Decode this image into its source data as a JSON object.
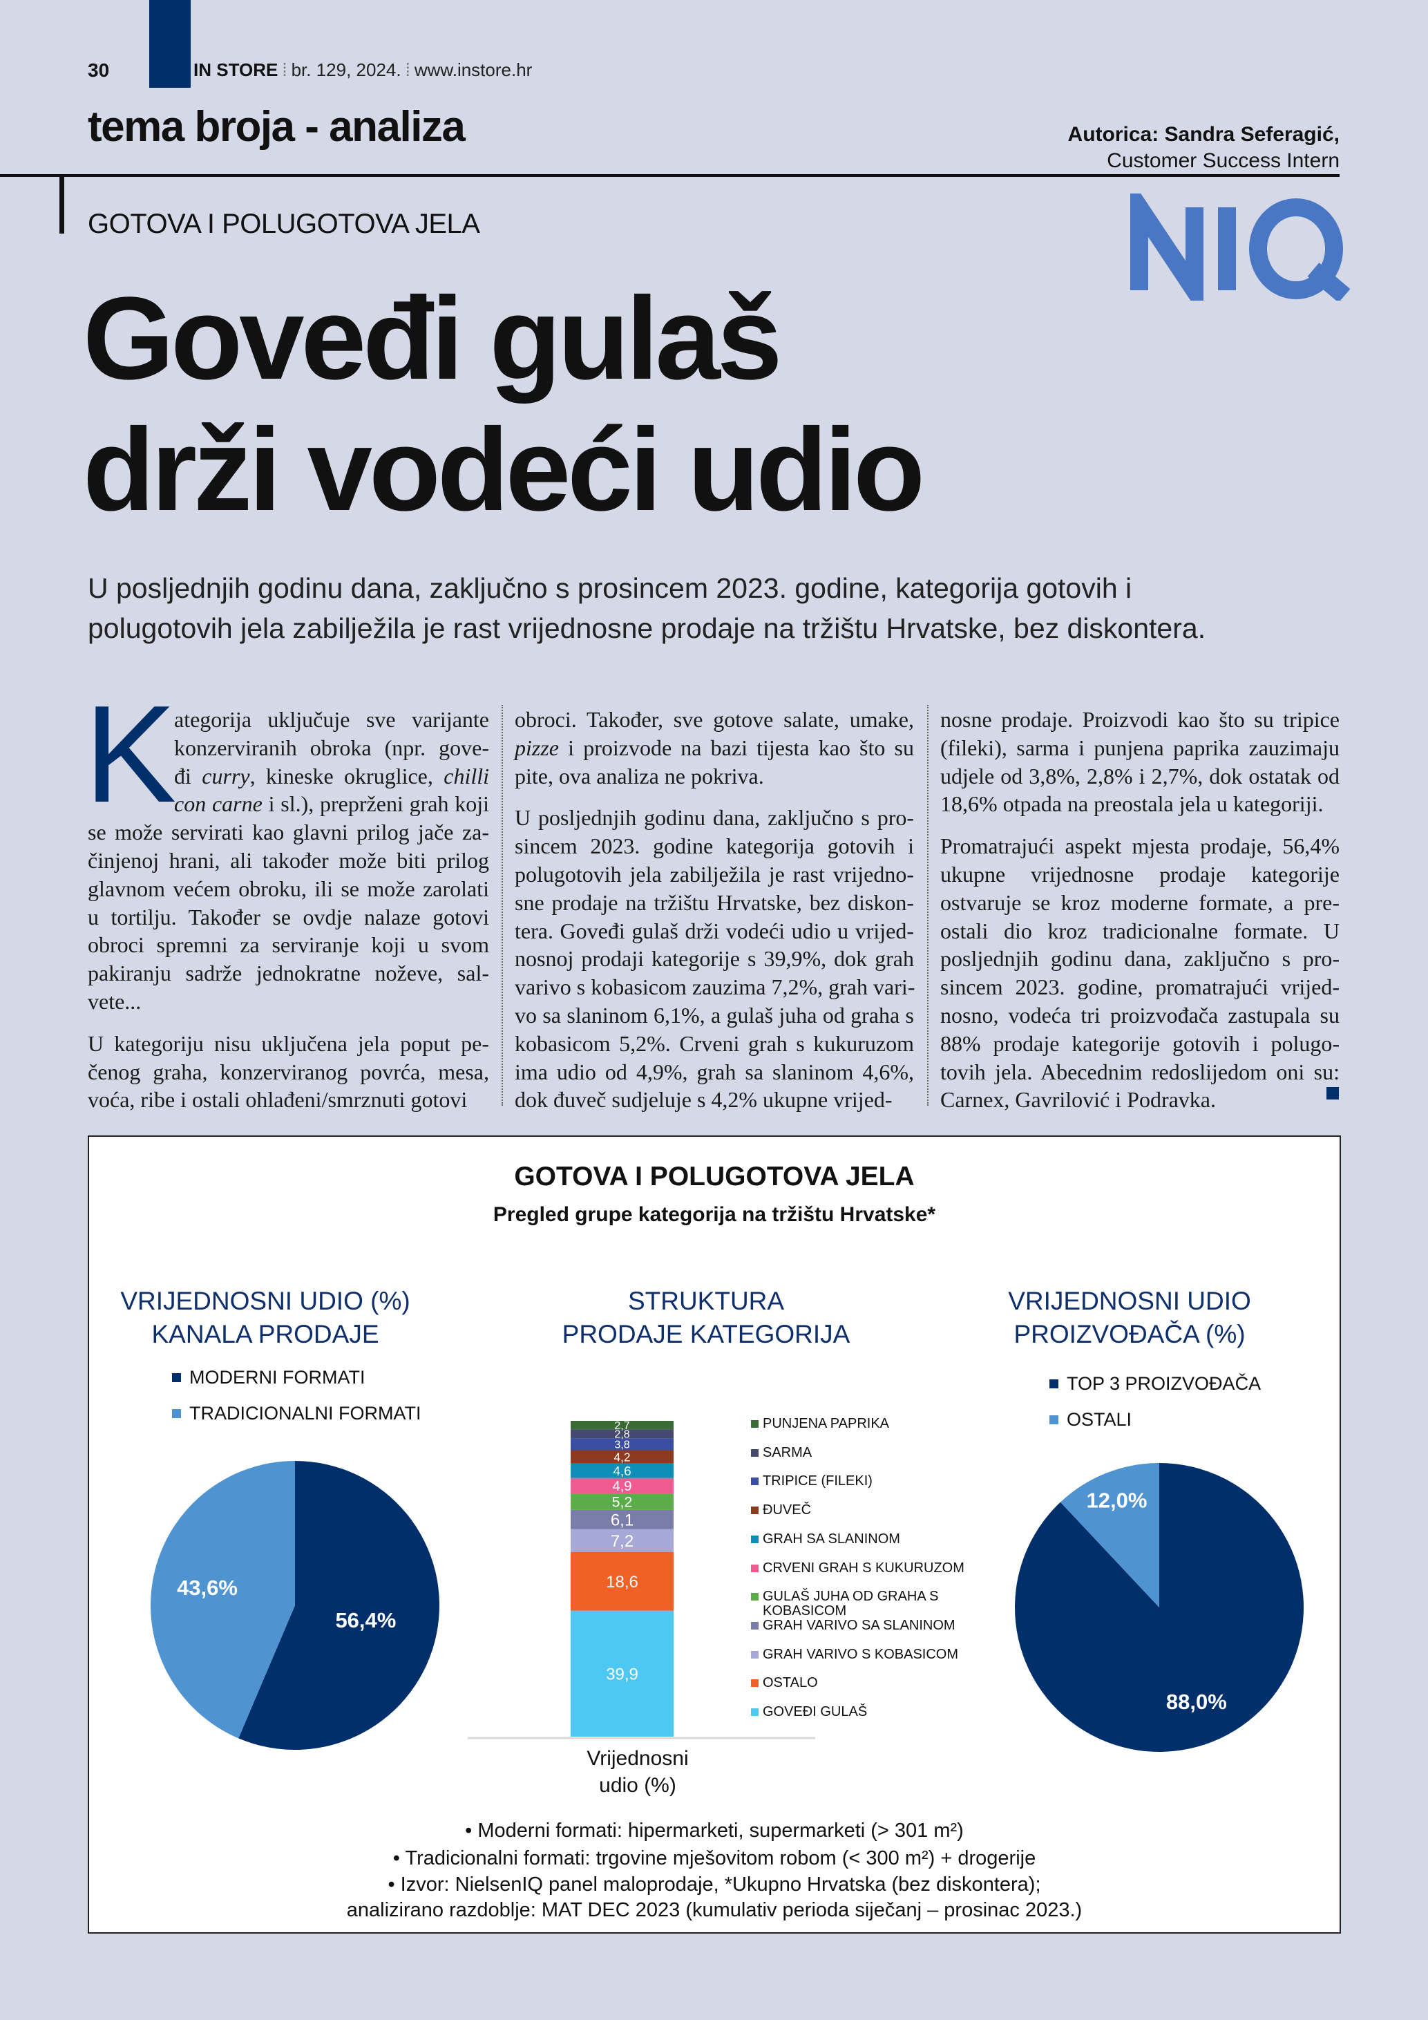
{
  "header": {
    "page_number": "30",
    "brand": "IN STORE",
    "issue": "br. 129, 2024.",
    "website": "www.instore.hr",
    "section": "tema broja - analiza",
    "author_name": "Autorica: Sandra Seferagić,",
    "author_role": "Customer Success Intern",
    "kicker": "GOTOVA I POLUGOTOVA JELA",
    "logo_text": "NIQ",
    "accent_color": "#002f6c"
  },
  "article": {
    "headline_lines": [
      "Goveđi gulaš",
      "drži vodeći udio"
    ],
    "lead_lines": [
      "U posljednjih godinu dana, zaključno s prosincem 2023. godine, kategorija gotovih i",
      "polugotovih jela zabilježila je rast vrijednosne prodaje na tržištu Hrvatske, bez diskontera."
    ],
    "drop_cap": "K",
    "columns": [
      [
        [
          [
            "ategorija uključuje sve varijante"
          ],
          [
            "konzerviranih obroka (npr. gove-"
          ],
          [
            "đi ",
            {
              "i": "curry"
            },
            ", kineske okruglice, ",
            {
              "i": "chilli"
            }
          ],
          [
            {
              "i": "con carne"
            },
            " i sl.), preprženi grah koji"
          ],
          [
            "se može servirati kao glavni prilog jače za-"
          ],
          [
            "činjenoj hrani, ali također može biti prilog"
          ],
          [
            "glavnom većem obroku, ili se može zarolati"
          ],
          [
            "u tortilju. Također se ovdje nalaze gotovi"
          ],
          [
            "obroci spremni za serviranje koji u svom"
          ],
          [
            "pakiranju sadrže jednokratne noževe, sal-"
          ],
          [
            "vete..."
          ]
        ],
        [
          [
            "U kategoriju nisu uključena jela poput pe-"
          ],
          [
            "čenog graha, konzerviranog povrća, mesa,"
          ],
          [
            "voća, ribe i ostali ohlađeni/smrznuti gotovi"
          ]
        ]
      ],
      [
        [
          [
            "obroci. Također, sve gotove salate, umake,"
          ],
          [
            {
              "i": "pizze"
            },
            " i proizvode na bazi tijesta kao što su"
          ],
          [
            "pite, ova analiza ne pokriva."
          ]
        ],
        [
          [
            "U posljednjih godinu dana, zaključno s pro-"
          ],
          [
            "sincem 2023. godine kategorija gotovih i"
          ],
          [
            "polugotovih jela zabilježila je rast vrijedno-"
          ],
          [
            "sne prodaje na tržištu Hrvatske, bez diskon-"
          ],
          [
            "tera. Goveđi gulaš drži vodeći udio u vrijed-"
          ],
          [
            "nosnoj prodaji kategorije s 39,9%, dok grah"
          ],
          [
            "varivo s kobasicom zauzima 7,2%, grah vari-"
          ],
          [
            "vo sa slaninom 6,1%, a gulaš juha od graha s"
          ],
          [
            "kobasicom 5,2%. Crveni grah s kukuruzom"
          ],
          [
            "ima udio od 4,9%, grah sa slaninom 4,6%,"
          ],
          [
            "dok đuveč sudjeluje s 4,2% ukupne vrijed-"
          ]
        ]
      ],
      [
        [
          [
            "nosne prodaje. Proizvodi kao što su tripice"
          ],
          [
            "(fileki), sarma i punjena paprika zauzimaju"
          ],
          [
            "udjele od 3,8%, 2,8% i 2,7%, dok ostatak od"
          ],
          [
            "18,6% otpada na preostala jela u kategoriji."
          ]
        ],
        [
          [
            "Promatrajući aspekt mjesta prodaje, 56,4%"
          ],
          [
            "ukupne vrijednosne prodaje kategorije"
          ],
          [
            "ostvaruje se kroz moderne formate, a pre-"
          ],
          [
            "ostali dio kroz tradicionalne formate. U"
          ],
          [
            "posljednjih godinu dana, zaključno s pro-"
          ],
          [
            "sincem 2023. godine, promatrajući vrijed-"
          ],
          [
            "nosno, vodeća tri proizvođača zastupala su"
          ],
          [
            "88% prodaje kategorije gotovih i polugo-"
          ],
          [
            "tovih jela. Abecednim redoslijedom oni su:"
          ],
          [
            "Carnex, Gavrilović i Podravka."
          ]
        ]
      ]
    ]
  },
  "infographic": {
    "title": "GOTOVA I POLUGOTOVA JELA",
    "subtitle": "Pregled grupe kategorija na tržištu Hrvatske*",
    "footnotes": [
      "•   Moderni formati: hipermarketi, supermarketi (> 301 m²)",
      "•   Tradicionalni formati: trgovine mješovitom robom (< 300 m²) + drogerije",
      "•   Izvor: NielsenIQ panel maloprodaje, *Ukupno Hrvatska  (bez diskontera);",
      "analizirano razdoblje: MAT DEC 2023 (kumulativ perioda siječanj – prosinac 2023.)"
    ]
  },
  "chart_data": [
    {
      "type": "pie",
      "title_lines": [
        "VRIJEDNOSNI UDIO (%)",
        "KANALA PRODAJE"
      ],
      "legend_placement": "top",
      "slices": [
        {
          "name": "MODERNI FORMATI",
          "value": 56.4,
          "label": "56,4%",
          "color": "#002f6c"
        },
        {
          "name": "TRADICIONALNI FORMATI",
          "value": 43.6,
          "label": "43,6%",
          "color": "#4f93d1"
        }
      ]
    },
    {
      "type": "bar",
      "stacked": true,
      "title_lines": [
        "STRUKTURA",
        "PRODAJE KATEGORIJA"
      ],
      "categories": [
        "Vrijednosni udio (%)"
      ],
      "xlabel_lines": [
        "Vrijednosni",
        "udio (%)"
      ],
      "legend_placement": "right",
      "series": [
        {
          "name": "GOVEĐI GULAŠ",
          "values": [
            39.9
          ],
          "label": "39,9",
          "color": "#4cc8f2"
        },
        {
          "name": "OSTALO",
          "values": [
            18.6
          ],
          "label": "18,6",
          "color": "#ef6125"
        },
        {
          "name": "GRAH VARIVO S KOBASICOM",
          "values": [
            7.2
          ],
          "label": "7,2",
          "color": "#a6a9d7"
        },
        {
          "name": "GRAH VARIVO SA SLANINOM",
          "values": [
            6.1
          ],
          "label": "6,1",
          "color": "#7a7caa"
        },
        {
          "name": "GULAŠ JUHA OD GRAHA S KOBASICOM",
          "legend_lines": [
            "GULAŠ JUHA OD GRAHA S",
            "KOBASICOM"
          ],
          "values": [
            5.2
          ],
          "label": "5,2",
          "color": "#5aad48"
        },
        {
          "name": "CRVENI GRAH S KUKURUZOM",
          "values": [
            4.9
          ],
          "label": "4,9",
          "color": "#ef5a91"
        },
        {
          "name": "GRAH SA SLANINOM",
          "values": [
            4.6
          ],
          "label": "4,6",
          "color": "#0f8fb8"
        },
        {
          "name": "ĐUVEČ",
          "values": [
            4.2
          ],
          "label": "4,2",
          "color": "#8d3a20"
        },
        {
          "name": "TRIPICE (FILEKI)",
          "values": [
            3.8
          ],
          "label": "3,8",
          "color": "#3a4ea3"
        },
        {
          "name": "SARMA",
          "values": [
            2.8
          ],
          "label": "2,8",
          "color": "#45496e"
        },
        {
          "name": "PUNJENA PAPRIKA",
          "values": [
            2.7
          ],
          "label": "2,7",
          "color": "#3a6b35"
        }
      ],
      "ylim": [
        0,
        100
      ]
    },
    {
      "type": "pie",
      "title_lines": [
        "VRIJEDNOSNI UDIO",
        "PROIZVOĐAČA (%)"
      ],
      "legend_placement": "top",
      "slices": [
        {
          "name": "TOP 3 PROIZVOĐAČA",
          "value": 88.0,
          "label": "88,0%",
          "color": "#002f6c"
        },
        {
          "name": "OSTALI",
          "value": 12.0,
          "label": "12,0%",
          "color": "#4f93d1"
        }
      ]
    }
  ]
}
